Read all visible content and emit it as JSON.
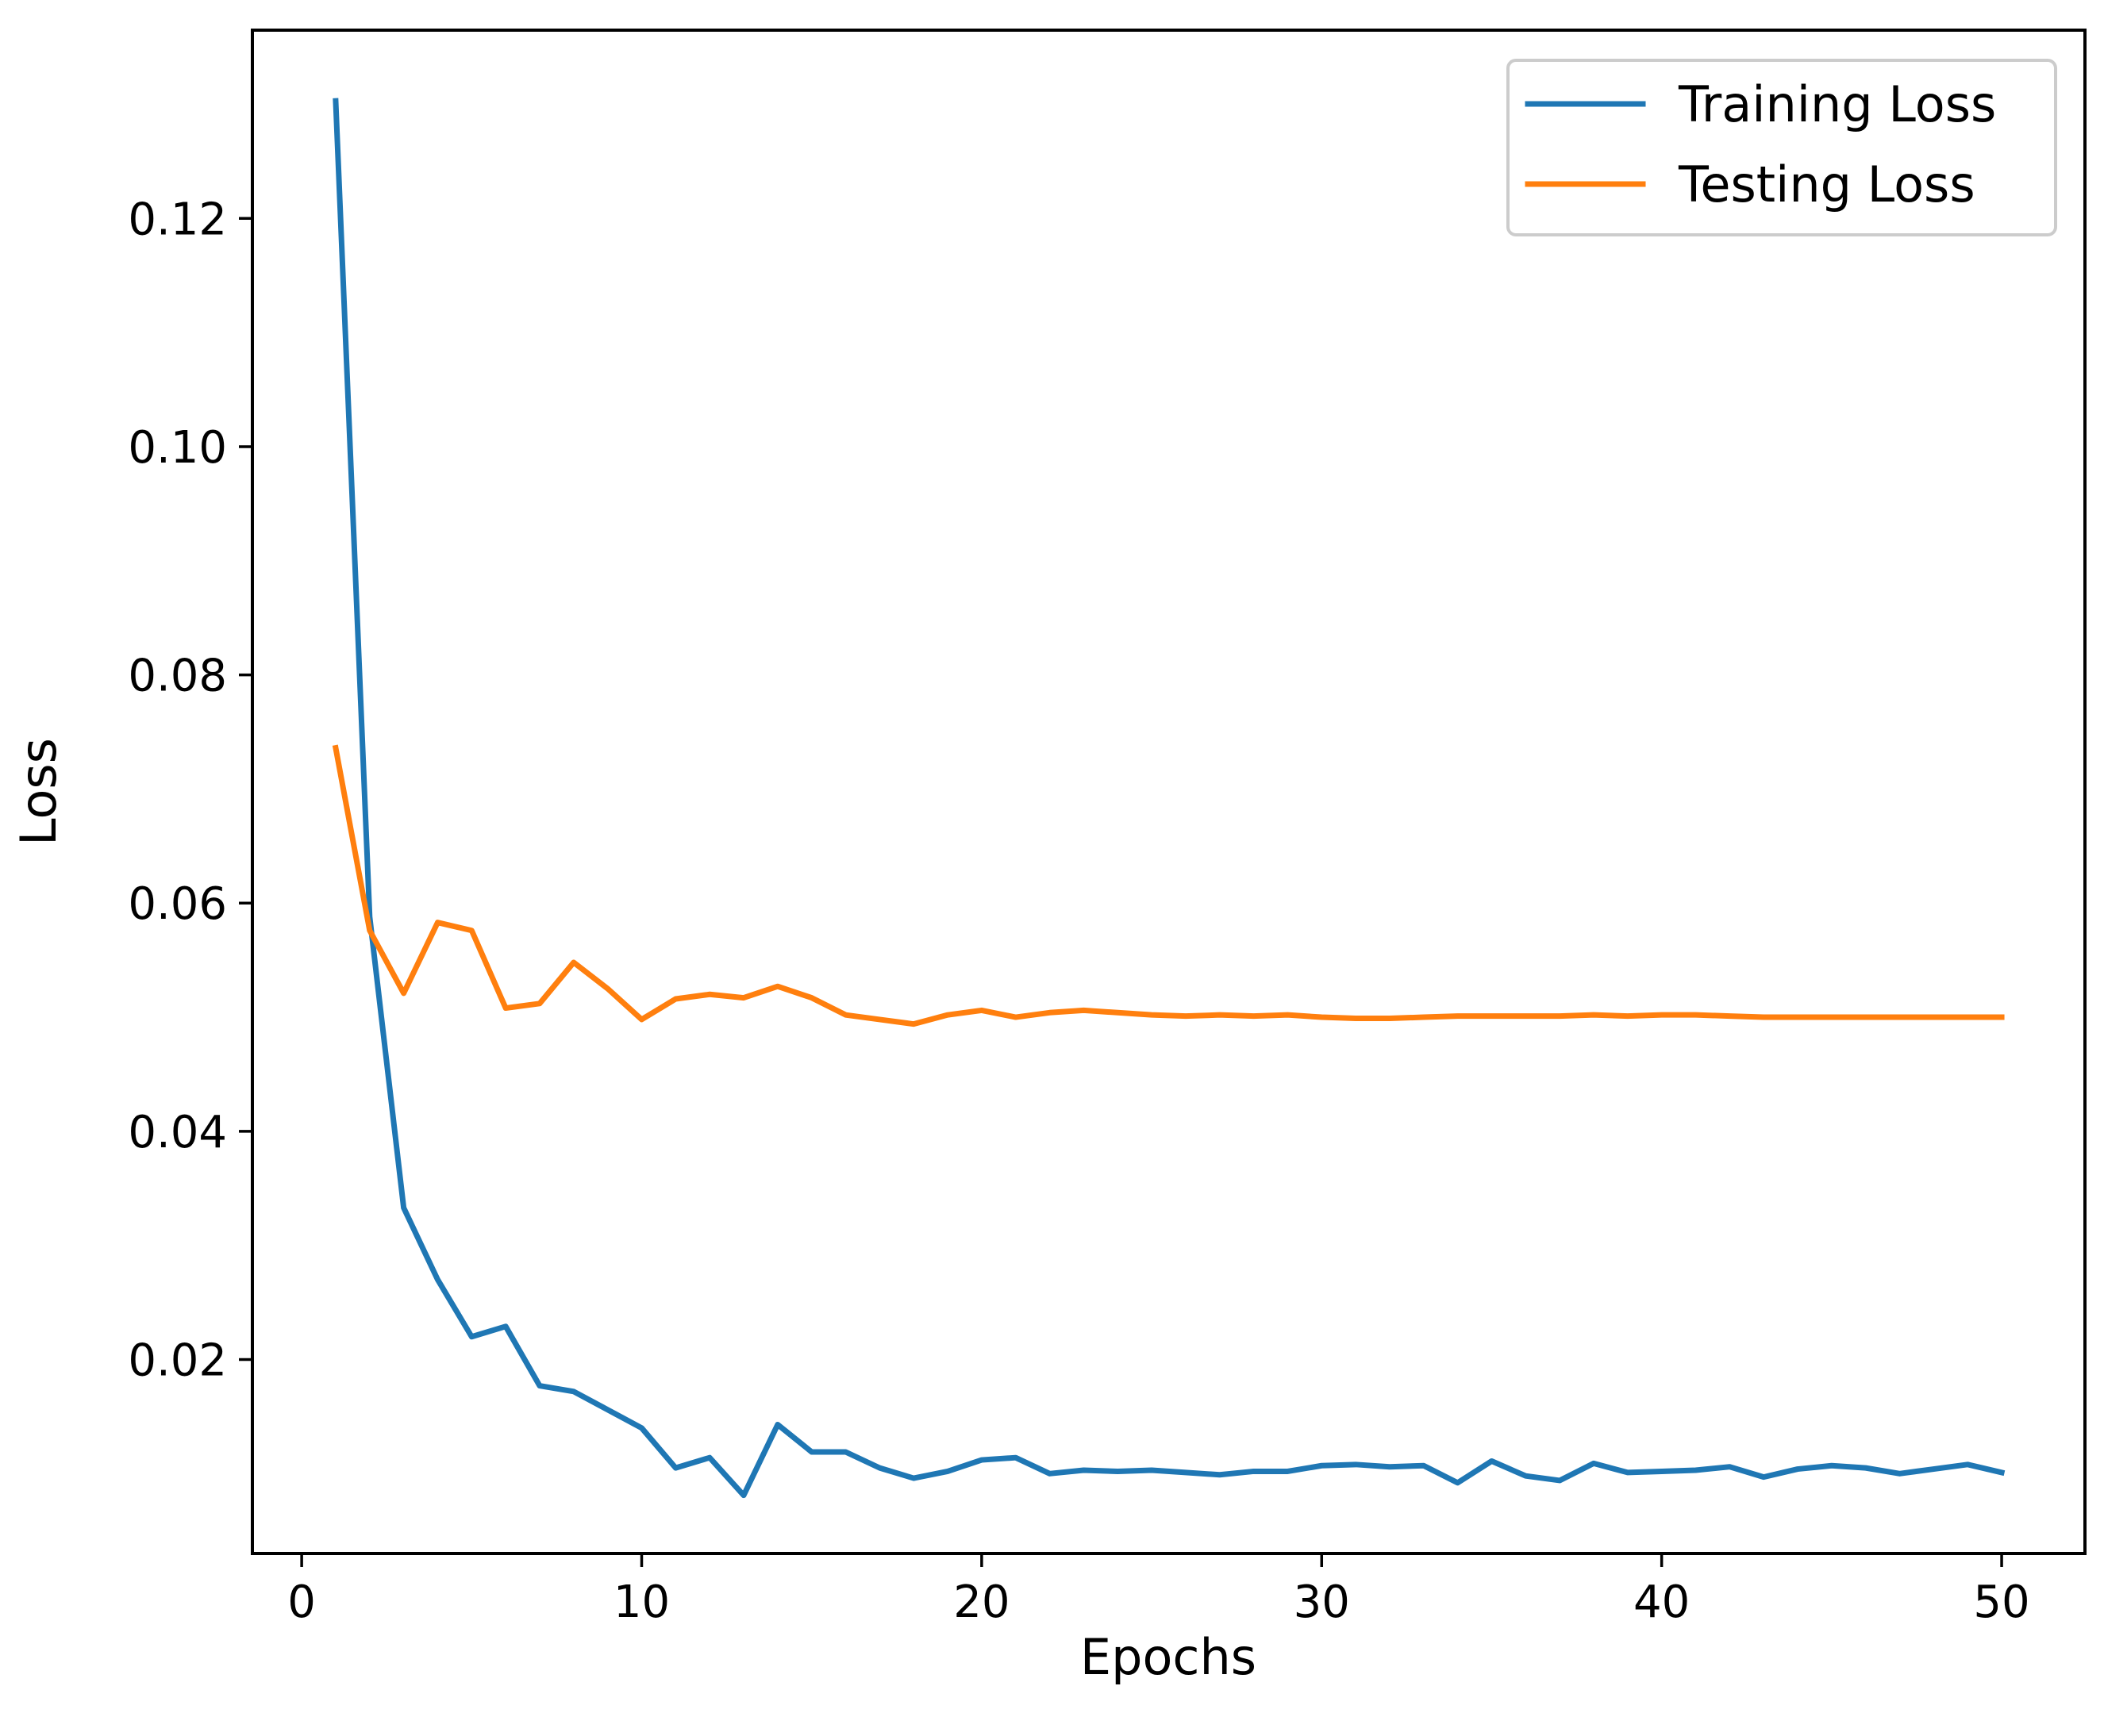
{
  "chart_data": {
    "type": "line",
    "title": "",
    "xlabel": "Epochs",
    "ylabel": "Loss",
    "xlim": [
      -1.45,
      52.45
    ],
    "ylim": [
      0.003,
      0.1365
    ],
    "xticks": [
      0,
      10,
      20,
      30,
      40,
      50
    ],
    "xtick_labels": [
      "0",
      "10",
      "20",
      "30",
      "40",
      "50"
    ],
    "yticks": [
      0.02,
      0.04,
      0.06,
      0.08,
      0.1,
      0.12
    ],
    "ytick_labels": [
      "0.02",
      "0.04",
      "0.06",
      "0.08",
      "0.10",
      "0.12"
    ],
    "grid": false,
    "legend_position": "top-right",
    "x": [
      1,
      2,
      3,
      4,
      5,
      6,
      7,
      8,
      9,
      10,
      11,
      12,
      13,
      14,
      15,
      16,
      17,
      18,
      19,
      20,
      21,
      22,
      23,
      24,
      25,
      26,
      27,
      28,
      29,
      30,
      31,
      32,
      33,
      34,
      35,
      36,
      37,
      38,
      39,
      40,
      41,
      42,
      43,
      44,
      45,
      46,
      47,
      48,
      49,
      50
    ],
    "series": [
      {
        "name": "Training Loss",
        "color": "#1f77b4",
        "values": [
          0.1303,
          0.0588,
          0.0333,
          0.027,
          0.022,
          0.0229,
          0.0177,
          0.0172,
          0.0156,
          0.014,
          0.0105,
          0.0114,
          0.0081,
          0.0143,
          0.0119,
          0.0119,
          0.0105,
          0.0096,
          0.0102,
          0.0112,
          0.0114,
          0.01,
          0.0103,
          0.0102,
          0.0103,
          0.0101,
          0.0099,
          0.0102,
          0.0102,
          0.0107,
          0.0108,
          0.0106,
          0.0107,
          0.0092,
          0.0111,
          0.0098,
          0.0094,
          0.0109,
          0.0101,
          0.0102,
          0.0103,
          0.0106,
          0.0097,
          0.0104,
          0.0107,
          0.0105,
          0.01,
          0.0104,
          0.0108,
          0.0101
        ]
      },
      {
        "name": "Testing Loss",
        "color": "#ff7f0e",
        "values": [
          0.0736,
          0.0576,
          0.0521,
          0.0583,
          0.0576,
          0.0508,
          0.0512,
          0.0548,
          0.0525,
          0.0498,
          0.0516,
          0.052,
          0.0517,
          0.0527,
          0.0517,
          0.0502,
          0.0498,
          0.0494,
          0.0502,
          0.0506,
          0.05,
          0.0504,
          0.0506,
          0.0504,
          0.0502,
          0.0501,
          0.0502,
          0.0501,
          0.0502,
          0.05,
          0.0499,
          0.0499,
          0.05,
          0.0501,
          0.0501,
          0.0501,
          0.0501,
          0.0502,
          0.0501,
          0.0502,
          0.0502,
          0.0501,
          0.05,
          0.05,
          0.05,
          0.05,
          0.05,
          0.05,
          0.05,
          0.05
        ]
      }
    ]
  }
}
